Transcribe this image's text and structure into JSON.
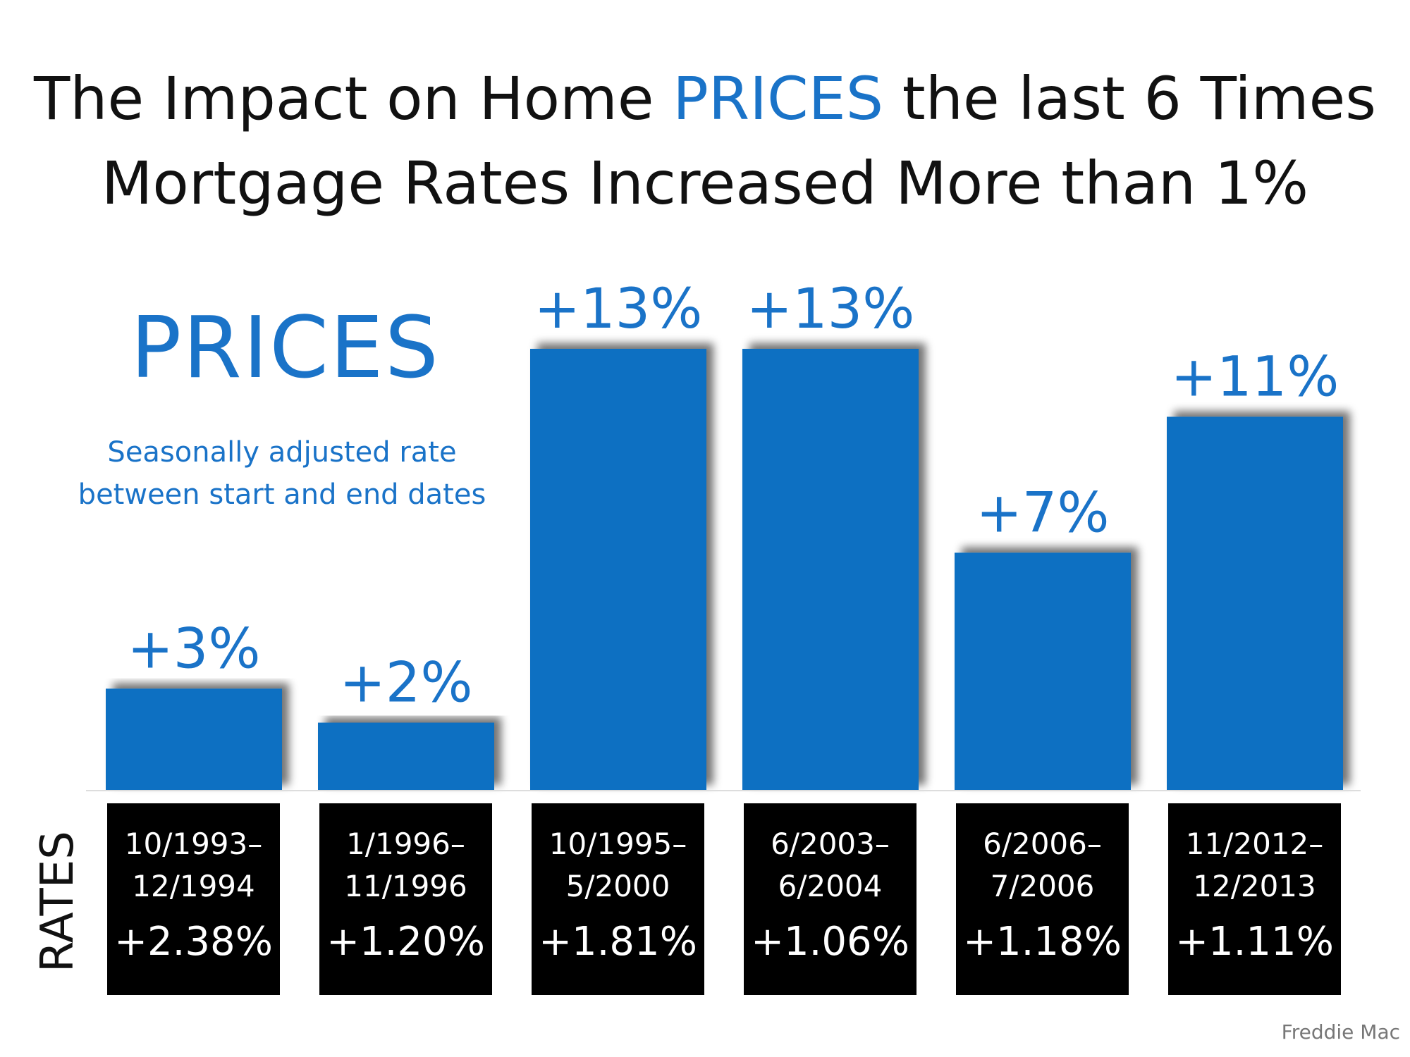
{
  "title": {
    "line1_pre": "The Impact on Home ",
    "line1_accent": "PRICES",
    "line1_post": " the last 6 Times",
    "line2": "Mortgage Rates Increased More than 1%"
  },
  "colors": {
    "accent": "#1a73c8",
    "bar": "#0b6fc2",
    "rate_box": "#000000"
  },
  "prices_heading": "PRICES",
  "subtitle": {
    "line1": "Seasonally adjusted rate",
    "line2": "between start and end dates"
  },
  "rates_label": "RATES",
  "source": "Freddie Mac",
  "chart_data": {
    "type": "bar",
    "title": "The Impact on Home PRICES the last 6 Times Mortgage Rates Increased More than 1%",
    "categories": [
      "10/1993–12/1994",
      "1/1996–11/1996",
      "10/1995–5/2000",
      "6/2003–6/2004",
      "6/2006–7/2006",
      "11/2012–12/2013"
    ],
    "series": [
      {
        "name": "PRICES",
        "values": [
          3,
          2,
          13,
          13,
          7,
          11
        ],
        "labels": [
          "+3%",
          "+2%",
          "+13%",
          "+13%",
          "+7%",
          "+11%"
        ]
      }
    ],
    "ylim": [
      0,
      13
    ],
    "xlabel": "",
    "ylabel": "",
    "rates": [
      {
        "dates_line1": "10/1993–",
        "dates_line2": "12/1994",
        "change": "+2.38%"
      },
      {
        "dates_line1": "1/1996–",
        "dates_line2": "11/1996",
        "change": "+1.20%"
      },
      {
        "dates_line1": "10/1995–",
        "dates_line2": "5/2000",
        "change": "+1.81%"
      },
      {
        "dates_line1": "6/2003–",
        "dates_line2": "6/2004",
        "change": "+1.06%"
      },
      {
        "dates_line1": "6/2006–",
        "dates_line2": "7/2006",
        "change": "+1.18%"
      },
      {
        "dates_line1": "11/2012–",
        "dates_line2": "12/2013",
        "change": "+1.11%"
      }
    ]
  }
}
